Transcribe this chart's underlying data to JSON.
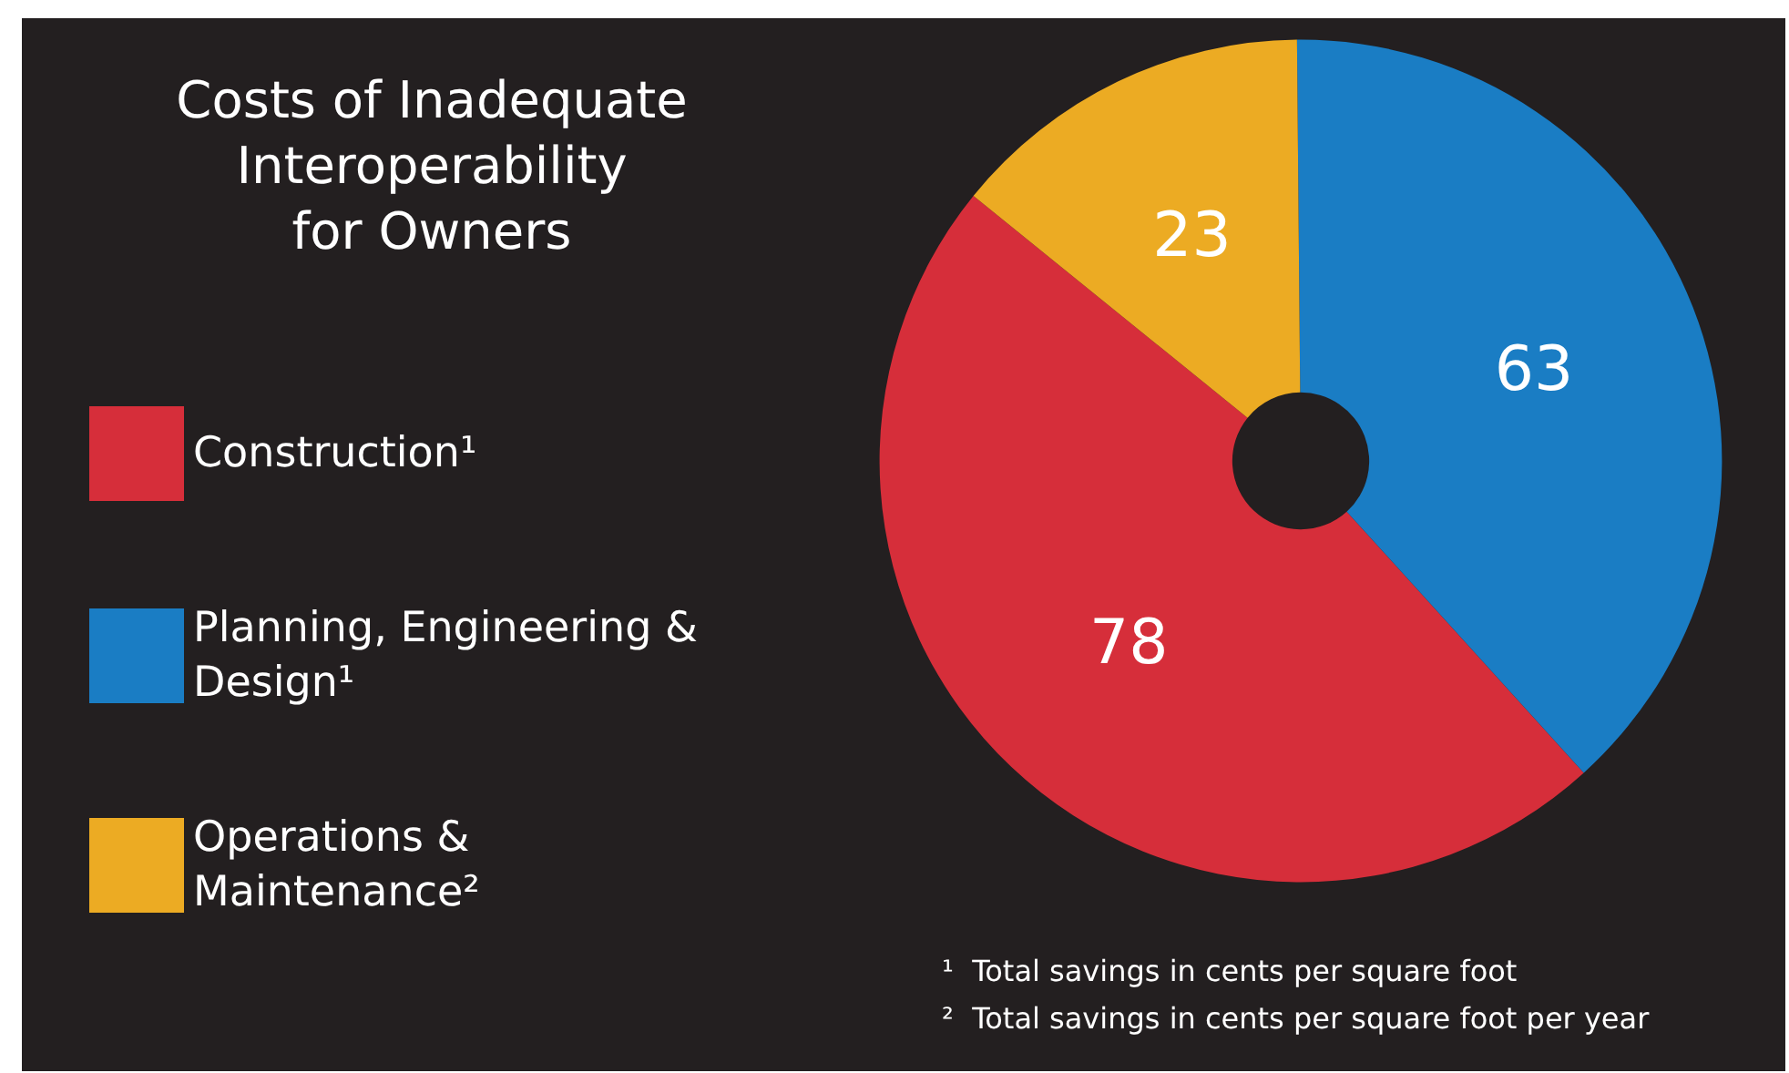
{
  "chart_data": {
    "type": "donut",
    "title": "Costs of Inadequate\nInteroperability\nfor Owners",
    "categories": [
      "Construction¹",
      "Planning, Engineering & Design¹",
      "Operations & Maintenance²"
    ],
    "values": [
      78,
      63,
      23
    ],
    "colors": [
      "#d62e3a",
      "#1a7dc4",
      "#ecab23"
    ],
    "data_labels": true,
    "legend": "left",
    "annotations": [
      "¹  Total savings in cents per square foot",
      "²  Total savings in cents per square foot per year"
    ]
  }
}
